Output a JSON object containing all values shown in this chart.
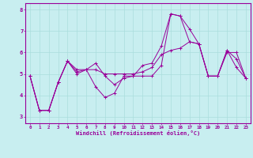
{
  "title": "",
  "xlabel": "Windchill (Refroidissement éolien,°C)",
  "ylabel": "",
  "bg_color": "#c8eef0",
  "line_color": "#990099",
  "grid_color": "#aadddd",
  "xlim": [
    -0.5,
    23.5
  ],
  "ylim": [
    2.7,
    8.3
  ],
  "yticks": [
    3,
    4,
    5,
    6,
    7,
    8
  ],
  "xticks": [
    0,
    1,
    2,
    3,
    4,
    5,
    6,
    7,
    8,
    9,
    10,
    11,
    12,
    13,
    14,
    15,
    16,
    17,
    18,
    19,
    20,
    21,
    22,
    23
  ],
  "line1": [
    4.9,
    3.3,
    3.3,
    4.6,
    5.6,
    5.1,
    5.2,
    5.5,
    4.9,
    4.5,
    4.8,
    4.9,
    5.4,
    5.5,
    6.3,
    7.8,
    7.7,
    7.1,
    6.4,
    4.9,
    4.9,
    6.1,
    5.7,
    4.8
  ],
  "line2": [
    4.9,
    3.3,
    3.3,
    4.6,
    5.6,
    5.0,
    5.2,
    4.4,
    3.9,
    4.1,
    4.9,
    4.9,
    4.9,
    4.9,
    5.4,
    7.8,
    7.7,
    6.5,
    6.4,
    4.9,
    4.9,
    6.1,
    5.3,
    4.8
  ],
  "line3": [
    4.9,
    3.3,
    3.3,
    4.6,
    5.6,
    5.2,
    5.2,
    5.2,
    5.0,
    5.0,
    5.0,
    5.0,
    5.1,
    5.3,
    5.9,
    6.1,
    6.2,
    6.5,
    6.4,
    4.9,
    4.9,
    6.0,
    6.0,
    4.8
  ]
}
